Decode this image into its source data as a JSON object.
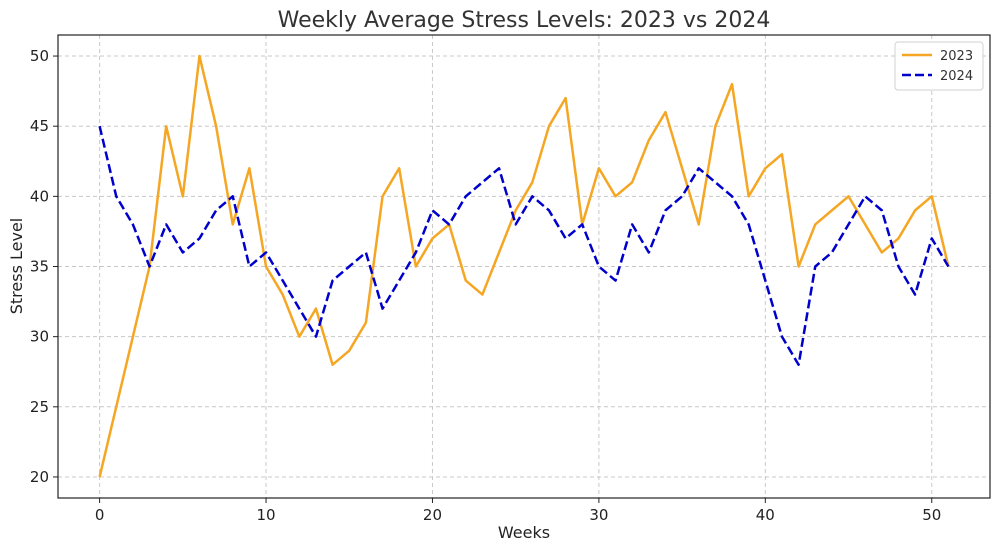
{
  "chart_data": {
    "type": "line",
    "title": "Weekly Average Stress Levels: 2023 vs 2024",
    "xlabel": "Weeks",
    "ylabel": "Stress Level",
    "xlim": [
      -2.5,
      53.5
    ],
    "ylim": [
      18.5,
      51.5
    ],
    "xticks": [
      0,
      10,
      20,
      30,
      40,
      50
    ],
    "yticks": [
      20,
      25,
      30,
      35,
      40,
      45,
      50
    ],
    "grid": true,
    "legend": "top-right",
    "x": [
      0,
      1,
      2,
      3,
      4,
      5,
      6,
      7,
      8,
      9,
      10,
      11,
      12,
      13,
      14,
      15,
      16,
      17,
      18,
      19,
      20,
      21,
      22,
      23,
      24,
      25,
      26,
      27,
      28,
      29,
      30,
      31,
      32,
      33,
      34,
      35,
      36,
      37,
      38,
      39,
      40,
      41,
      42,
      43,
      44,
      45,
      46,
      47,
      48,
      49,
      50,
      51
    ],
    "series": [
      {
        "name": "2023",
        "color": "#f5a623",
        "dash": "solid",
        "values": [
          20,
          25,
          30,
          35,
          45,
          40,
          50,
          45,
          38,
          42,
          35,
          33,
          30,
          32,
          28,
          29,
          31,
          40,
          42,
          35,
          37,
          38,
          34,
          33,
          36,
          39,
          41,
          45,
          47,
          38,
          42,
          40,
          41,
          44,
          46,
          42,
          38,
          45,
          48,
          40,
          42,
          43,
          35,
          38,
          39,
          40,
          38,
          36,
          37,
          39,
          40,
          35
        ]
      },
      {
        "name": "2024",
        "color": "#0000cc",
        "dash": "dashed",
        "values": [
          45,
          40,
          38,
          35,
          38,
          36,
          37,
          39,
          40,
          35,
          36,
          34,
          32,
          30,
          34,
          35,
          36,
          32,
          34,
          36,
          39,
          38,
          40,
          41,
          42,
          38,
          40,
          39,
          37,
          38,
          35,
          34,
          38,
          36,
          39,
          40,
          42,
          41,
          40,
          38,
          34,
          30,
          28,
          35,
          36,
          38,
          40,
          39,
          35,
          33,
          37,
          35
        ]
      }
    ]
  }
}
